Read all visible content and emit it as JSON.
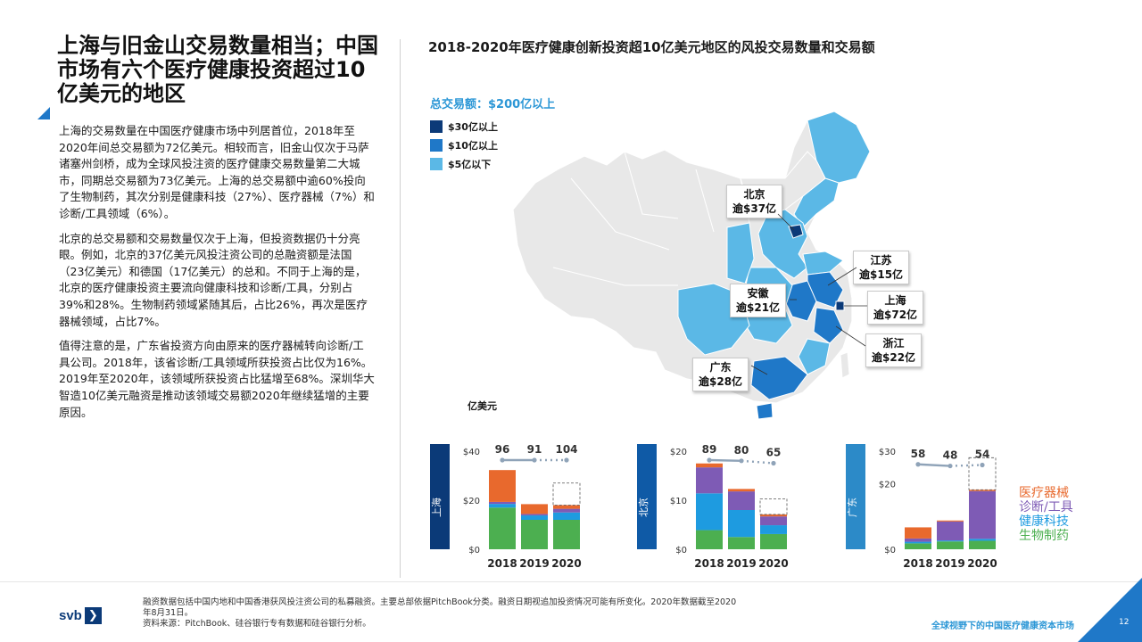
{
  "left": {
    "title": "上海与旧金山交易数量相当；中国市场有六个医疗健康投资超过10亿美元的地区",
    "paragraphs": [
      "上海的交易数量在中国医疗健康市场中列居首位，2018年至2020年间总交易额为72亿美元。相较而言，旧金山仅次于马萨诸塞州剑桥，成为全球风投注资的医疗健康交易数量第二大城市，同期总交易额为73亿美元。上海的总交易额中逾60%投向了生物制药，其次分别是健康科技（27%）、医疗器械（7%）和诊断/工具领域（6%）。",
      "北京的总交易额和交易数量仅次于上海，但投资数据仍十分亮眼。例如，北京的37亿美元风投注资公司的总融资额是法国（23亿美元）和德国（17亿美元）的总和。不同于上海的是，北京的医疗健康投资主要流向健康科技和诊断/工具，分别占39%和28%。生物制药领域紧随其后，占比26%，再次是医疗器械领域，占比7%。",
      "值得注意的是，广东省投资方向由原来的医疗器械转向诊断/工具公司。2018年，该省诊断/工具领域所获投资占比仅为16%。2019年至2020年，该领域所获投资占比猛增至68%。深圳华大智造10亿美元融资是推动该领域交易额2020年继续猛增的主要原因。"
    ]
  },
  "right": {
    "title": "2018-2020年医疗健康创新投资超10亿美元地区的风投交易数量和交易额",
    "legend_title": "总交易额：$200亿以上",
    "legend": [
      {
        "label": "$30亿以上",
        "color": "#0b3a78"
      },
      {
        "label": "$10亿以上",
        "color": "#1f78c8"
      },
      {
        "label": "$5亿以下",
        "color": "#5bb8e6"
      }
    ],
    "callouts": [
      {
        "name": "北京",
        "value": "逾$37亿"
      },
      {
        "name": "江苏",
        "value": "逾$15亿"
      },
      {
        "name": "安徽",
        "value": "逾$21亿"
      },
      {
        "name": "上海",
        "value": "逾$72亿"
      },
      {
        "name": "浙江",
        "value": "逾$22亿"
      },
      {
        "name": "广东",
        "value": "逾$28亿"
      }
    ],
    "unit": "亿美元"
  },
  "colors": {
    "biopharma": "#4caf50",
    "healthtech": "#1e9be0",
    "diagnostics": "#7e5bb5",
    "devices": "#e8692d",
    "count_line": "#8fa3b8",
    "shanghai": "#0b3a78",
    "beijing": "#0f5aa6",
    "guangdong": "#2c8ac8"
  },
  "series_legend": [
    {
      "label": "医疗器械",
      "color": "#e8692d"
    },
    {
      "label": "诊断/工具",
      "color": "#7e5bb5"
    },
    {
      "label": "健康科技",
      "color": "#1e9be0"
    },
    {
      "label": "生物制药",
      "color": "#4caf50"
    }
  ],
  "chart_data": [
    {
      "type": "bar",
      "region": "上海",
      "band_color": "#0b3a78",
      "categories": [
        "2018",
        "2019",
        "2020"
      ],
      "ylim": [
        0,
        40
      ],
      "yticks": [
        "$40",
        "$20",
        "$0"
      ],
      "yticks_values": [
        40,
        20,
        0
      ],
      "series": [
        {
          "name": "生物制药",
          "values": [
            17,
            12,
            12
          ]
        },
        {
          "name": "健康科技",
          "values": [
            1.5,
            1.8,
            3
          ]
        },
        {
          "name": "诊断/工具",
          "values": [
            0.8,
            0.6,
            1.5
          ]
        },
        {
          "name": "医疗器械",
          "values": [
            13,
            4,
            1.5
          ]
        }
      ],
      "dashed_top": [
        null,
        null,
        27
      ],
      "deal_counts": [
        96,
        91,
        104
      ]
    },
    {
      "type": "bar",
      "region": "北京",
      "band_color": "#0f5aa6",
      "categories": [
        "2018",
        "2019",
        "2020"
      ],
      "ylim": [
        0,
        20
      ],
      "yticks": [
        "$20",
        "$10",
        "$0"
      ],
      "yticks_values": [
        20,
        10,
        0
      ],
      "series": [
        {
          "name": "生物制药",
          "values": [
            3.9,
            2.5,
            3.1
          ]
        },
        {
          "name": "健康科技",
          "values": [
            7.5,
            5.5,
            1.8
          ]
        },
        {
          "name": "诊断/工具",
          "values": [
            5.3,
            3.8,
            1.8
          ]
        },
        {
          "name": "医疗器械",
          "values": [
            0.8,
            0.5,
            0.4
          ]
        }
      ],
      "dashed_top": [
        null,
        null,
        10.3
      ],
      "deal_counts": [
        89,
        80,
        65
      ]
    },
    {
      "type": "bar",
      "region": "广东",
      "band_color": "#2c8ac8",
      "categories": [
        "2018",
        "2019",
        "2020"
      ],
      "ylim": [
        0,
        30
      ],
      "yticks": [
        "$30",
        "$20",
        "$0"
      ],
      "yticks_values": [
        30,
        20,
        0
      ],
      "series": [
        {
          "name": "生物制药",
          "values": [
            1.8,
            2.4,
            2.6
          ]
        },
        {
          "name": "健康科技",
          "values": [
            0.5,
            0.3,
            0.6
          ]
        },
        {
          "name": "诊断/工具",
          "values": [
            1.0,
            5.8,
            14.6
          ]
        },
        {
          "name": "医疗器械",
          "values": [
            3.4,
            0.3,
            0.4
          ]
        }
      ],
      "dashed_top": [
        null,
        null,
        28
      ],
      "deal_counts": [
        58,
        48,
        54
      ]
    }
  ],
  "footer": {
    "logo": "svb",
    "logo_arrow": "❯",
    "notes": [
      "融资数据包括中国内地和中国香港获风投注资公司的私募融资。主要总部依据PitchBook分类。融资日期视追加投资情况可能有所变化。2020年数据截至2020年8月31日。",
      "资料来源：PitchBook、硅谷银行专有数据和硅谷银行分析。"
    ],
    "title": "全球视野下的中国医疗健康资本市场",
    "page": "12"
  }
}
